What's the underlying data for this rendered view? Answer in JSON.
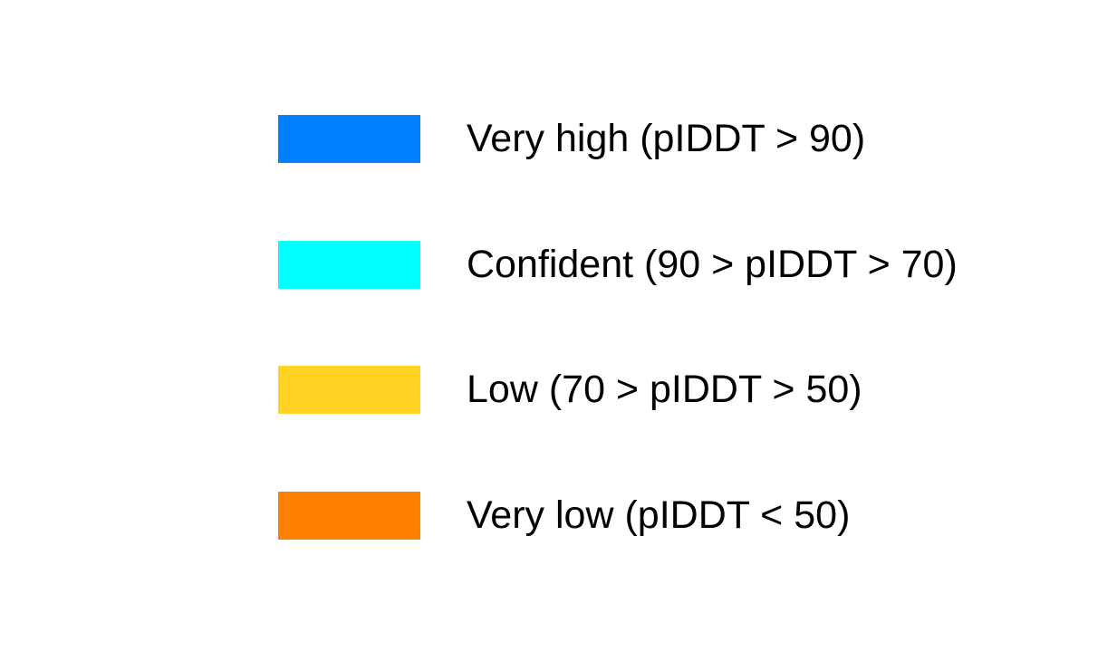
{
  "legend": {
    "items": [
      {
        "label": "Very high (pIDDT > 90)",
        "color": "#0080FF"
      },
      {
        "label": "Confident (90 > pIDDT > 70)",
        "color": "#00FFFF"
      },
      {
        "label": "Low (70 > pIDDT > 50)",
        "color": "#FFD224"
      },
      {
        "label": "Very low (pIDDT < 50)",
        "color": "#FF8000"
      }
    ]
  }
}
